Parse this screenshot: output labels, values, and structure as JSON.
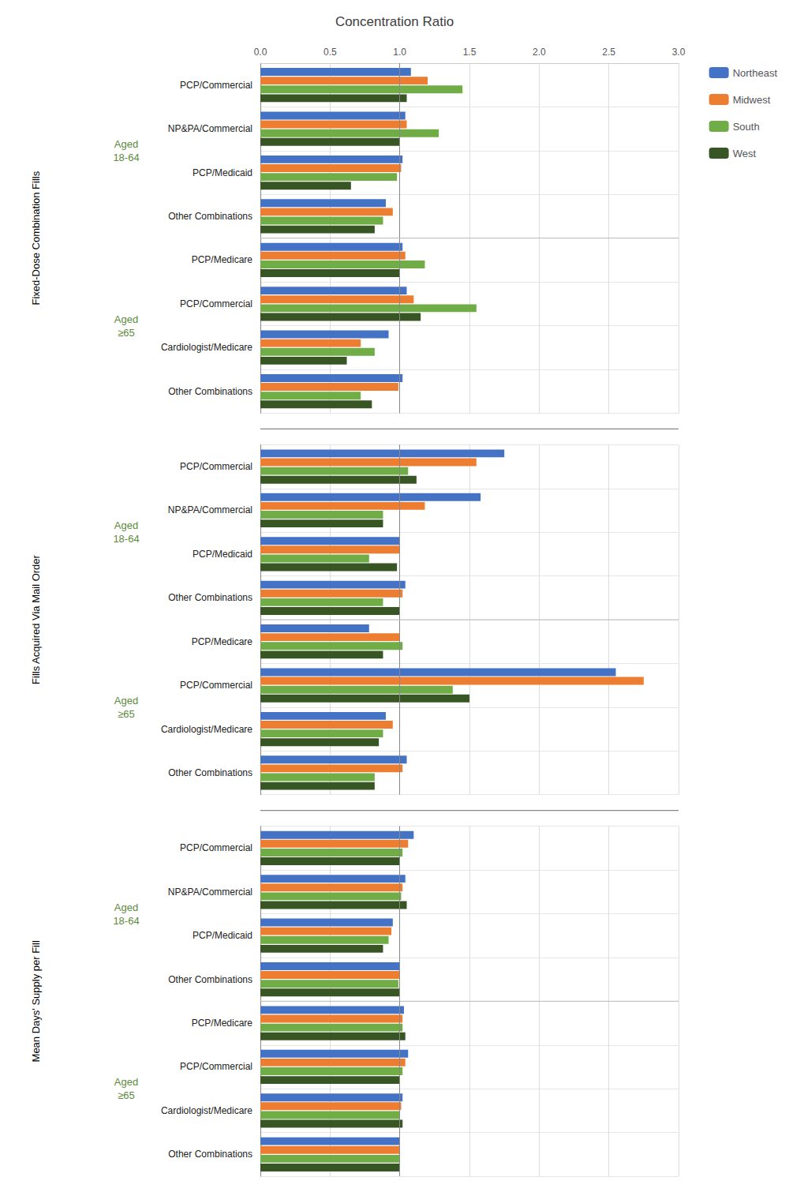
{
  "chart_data": {
    "type": "bar",
    "orientation": "horizontal",
    "title": "Concentration Ratio",
    "categories": [
      "PCP/Commercial",
      "NP&PA/Commercial",
      "PCP/Medicaid",
      "Other Combinations",
      "PCP/Medicare",
      "PCP/Commercial",
      "Cardiologist/Medicare",
      "Other Combinations",
      "PCP/Commercial",
      "NP&PA/Commercial",
      "PCP/Medicaid",
      "Other Combinations",
      "PCP/Medicare",
      "PCP/Commercial",
      "Cardiologist/Medicare",
      "Other Combinations",
      "PCP/Commercial",
      "NP&PA/Commercial",
      "PCP/Medicaid",
      "Other Combinations",
      "PCP/Medicare",
      "PCP/Commercial",
      "Cardiologist/Medicare",
      "Other Combinations"
    ],
    "category_groups": [
      "Aged\n18-64",
      "Aged\n18-64",
      "Aged\n18-64",
      "Aged\n18-64",
      "Aged\n≥65",
      "Aged\n≥65",
      "Aged\n≥65",
      "Aged\n≥65",
      "Aged\n18-64",
      "Aged\n18-64",
      "Aged\n18-64",
      "Aged\n18-64",
      "Aged\n≥65",
      "Aged\n≥65",
      "Aged\n≥65",
      "Aged\n≥65",
      "Aged\n18-64",
      "Aged\n18-64",
      "Aged\n18-64",
      "Aged\n18-64",
      "Aged\n≥65",
      "Aged\n≥65",
      "Aged\n≥65",
      "Aged\n≥65"
    ],
    "category_sections": [
      "Fixed-Dose Combination Fills",
      "Fixed-Dose Combination Fills",
      "Fixed-Dose Combination Fills",
      "Fixed-Dose Combination Fills",
      "Fixed-Dose Combination Fills",
      "Fixed-Dose Combination Fills",
      "Fixed-Dose Combination Fills",
      "Fixed-Dose Combination Fills",
      "Fills Acquired Via Mail Order",
      "Fills Acquired Via Mail Order",
      "Fills Acquired Via Mail Order",
      "Fills Acquired Via Mail Order",
      "Fills Acquired Via Mail Order",
      "Fills Acquired Via Mail Order",
      "Fills Acquired Via Mail Order",
      "Fills Acquired Via Mail Order",
      "Mean Days' Supply per Fill",
      "Mean Days' Supply per Fill",
      "Mean Days' Supply per Fill",
      "Mean Days' Supply per Fill",
      "Mean Days' Supply per Fill",
      "Mean Days' Supply per Fill",
      "Mean Days' Supply per Fill",
      "Mean Days' Supply per Fill"
    ],
    "series": [
      {
        "name": "Northeast",
        "color": "#4472C4",
        "values": [
          1.08,
          1.04,
          1.02,
          0.9,
          1.02,
          1.05,
          0.92,
          1.02,
          1.75,
          1.58,
          1.0,
          1.04,
          0.78,
          2.55,
          0.9,
          1.05,
          1.1,
          1.04,
          0.95,
          1.0,
          1.03,
          1.06,
          1.02,
          1.0
        ]
      },
      {
        "name": "Midwest",
        "color": "#ED7D31",
        "values": [
          1.2,
          1.05,
          1.01,
          0.95,
          1.04,
          1.1,
          0.72,
          0.99,
          1.55,
          1.18,
          1.0,
          1.02,
          1.0,
          2.75,
          0.95,
          1.02,
          1.06,
          1.02,
          0.94,
          1.0,
          1.02,
          1.04,
          1.01,
          1.0
        ]
      },
      {
        "name": "South",
        "color": "#70AD47",
        "values": [
          1.45,
          1.28,
          0.98,
          0.88,
          1.18,
          1.55,
          0.82,
          0.72,
          1.06,
          0.88,
          0.78,
          0.88,
          1.02,
          1.38,
          0.88,
          0.82,
          1.02,
          1.01,
          0.92,
          0.99,
          1.02,
          1.02,
          1.0,
          1.0
        ]
      },
      {
        "name": "West",
        "color": "#375623",
        "values": [
          1.05,
          1.0,
          0.65,
          0.82,
          1.0,
          1.15,
          0.62,
          0.8,
          1.12,
          0.88,
          0.98,
          1.0,
          0.88,
          1.5,
          0.85,
          0.82,
          1.0,
          1.05,
          0.88,
          1.0,
          1.04,
          1.0,
          1.02,
          1.0
        ]
      }
    ],
    "xlim": [
      0.0,
      3.0
    ],
    "xticks": [
      {
        "value": 0,
        "label": "0.0"
      },
      0.5,
      {
        "value": 1,
        "label": "1.0"
      },
      1.5,
      {
        "value": 2,
        "label": "2.0"
      },
      2.5,
      {
        "value": 3,
        "label": "3.0"
      }
    ],
    "vlines": [
      1.0
    ],
    "grid": true,
    "legend": "upper right"
  }
}
